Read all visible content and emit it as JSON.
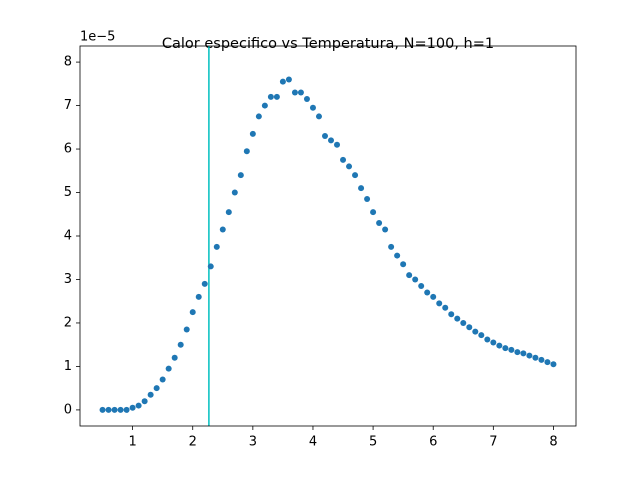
{
  "chart_data": {
    "type": "scatter",
    "title": "Calor especifico vs Temperatura, N=100, h=1",
    "y_offset_label": "1e−5",
    "x": [
      0.5,
      0.6,
      0.7,
      0.8,
      0.9,
      1.0,
      1.1,
      1.2,
      1.3,
      1.4,
      1.5,
      1.6,
      1.7,
      1.8,
      1.9,
      2.0,
      2.1,
      2.2,
      2.3,
      2.4,
      2.5,
      2.6,
      2.7,
      2.8,
      2.9,
      3.0,
      3.1,
      3.2,
      3.3,
      3.4,
      3.5,
      3.6,
      3.7,
      3.8,
      3.9,
      4.0,
      4.1,
      4.2,
      4.3,
      4.4,
      4.5,
      4.6,
      4.7,
      4.8,
      4.9,
      5.0,
      5.1,
      5.2,
      5.3,
      5.4,
      5.5,
      5.6,
      5.7,
      5.8,
      5.9,
      6.0,
      6.1,
      6.2,
      6.3,
      6.4,
      6.5,
      6.6,
      6.7,
      6.8,
      6.9,
      7.0,
      7.1,
      7.2,
      7.3,
      7.4,
      7.5,
      7.6,
      7.7,
      7.8,
      7.9,
      8.0
    ],
    "series": [
      {
        "color": "#1f77b4",
        "values": [
          0,
          0,
          0,
          0,
          0,
          0.05,
          0.1,
          0.2,
          0.35,
          0.5,
          0.7,
          0.95,
          1.2,
          1.5,
          1.85,
          2.25,
          2.6,
          2.9,
          3.3,
          3.75,
          4.15,
          4.55,
          5.0,
          5.4,
          5.95,
          6.35,
          6.75,
          7.0,
          7.2,
          7.2,
          7.55,
          7.6,
          7.3,
          7.3,
          7.15,
          6.95,
          6.75,
          6.3,
          6.2,
          6.1,
          5.75,
          5.6,
          5.4,
          5.1,
          4.85,
          4.55,
          4.3,
          4.15,
          3.75,
          3.55,
          3.35,
          3.1,
          3.0,
          2.85,
          2.7,
          2.6,
          2.45,
          2.35,
          2.2,
          2.1,
          2.0,
          1.9,
          1.8,
          1.72,
          1.62,
          1.55,
          1.48,
          1.42,
          1.38,
          1.33,
          1.3,
          1.25,
          1.2,
          1.15,
          1.1,
          1.05
        ]
      }
    ],
    "vline": {
      "x": 2.269,
      "color": "#00bfbf"
    },
    "xlim": [
      0.125,
      8.375
    ],
    "xticks": [
      1,
      2,
      3,
      4,
      5,
      6,
      7,
      8
    ],
    "ylim": [
      -0.37,
      8.37
    ],
    "yticks": [
      0,
      1,
      2,
      3,
      4,
      5,
      6,
      7,
      8
    ],
    "grid": false
  }
}
